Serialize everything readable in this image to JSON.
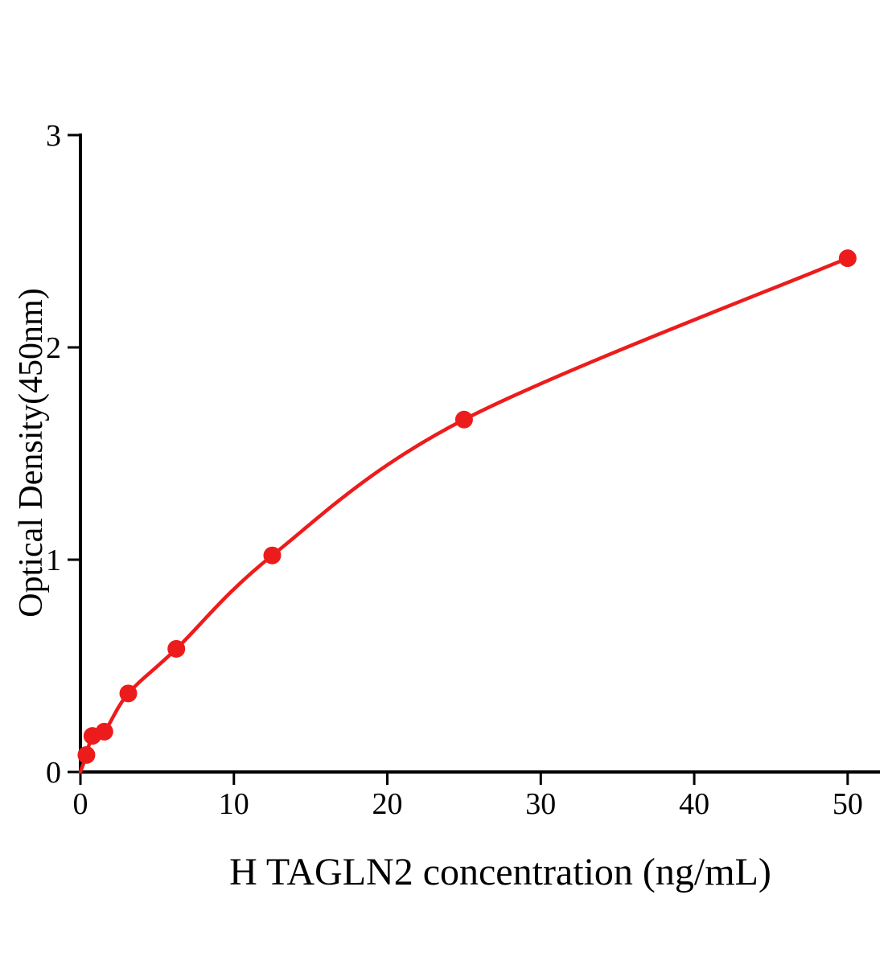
{
  "chart_data": {
    "type": "scatter",
    "title": "",
    "xlabel": "H TAGLN2 concentration (ng/mL)",
    "ylabel": "Optical Density(450nm)",
    "x": [
      0.39,
      0.78,
      1.56,
      3.12,
      6.25,
      12.5,
      25,
      50
    ],
    "y": [
      0.08,
      0.17,
      0.19,
      0.37,
      0.58,
      1.02,
      1.66,
      2.42
    ],
    "curve_start": [
      0,
      0
    ],
    "xlim": [
      0,
      52
    ],
    "ylim": [
      0,
      3
    ],
    "x_ticks": [
      0,
      10,
      20,
      30,
      40,
      50
    ],
    "y_ticks": [
      0,
      1,
      2,
      3
    ],
    "series_color": "#ed1c1c",
    "axis_color": "#000000",
    "grid": false,
    "legend": false,
    "point_radius": 11,
    "description": "ELISA standard curve: fitted smooth curve through red data points"
  }
}
